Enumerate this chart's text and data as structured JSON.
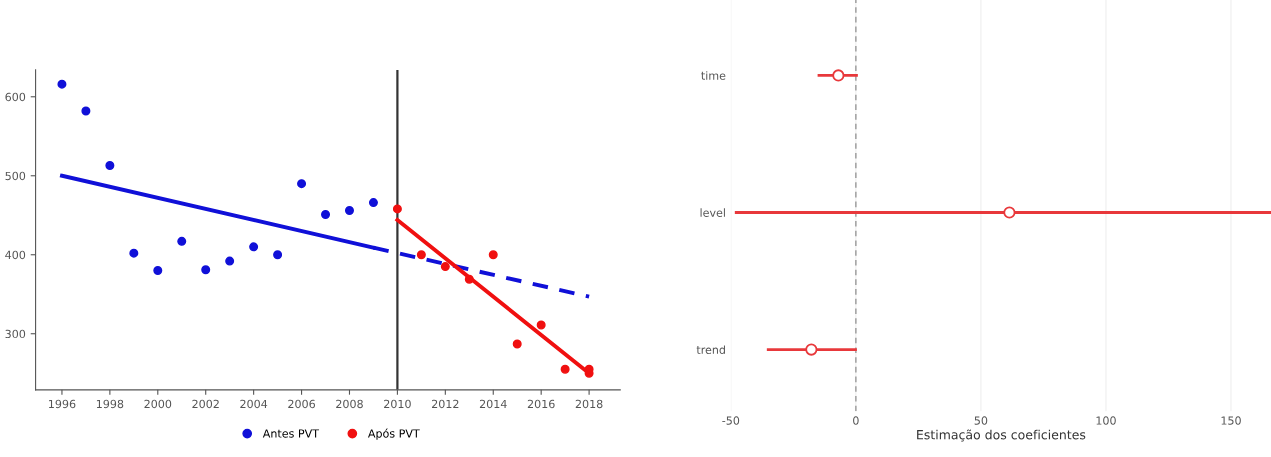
{
  "chart_data": [
    {
      "type": "scatter",
      "xlim": [
        1994.9,
        2019.3
      ],
      "ylim": [
        229,
        634
      ],
      "xticks": [
        1996,
        1998,
        2000,
        2002,
        2004,
        2006,
        2008,
        2010,
        2012,
        2014,
        2016,
        2018
      ],
      "yticks": [
        300,
        400,
        500,
        600
      ],
      "grid": false,
      "legend": "bottom",
      "marker": "circle",
      "series": [
        {
          "name": "Antes PVT",
          "color": "#1010d8",
          "x": [
            1996,
            1997,
            1998,
            1999,
            2000,
            2001,
            2002,
            2003,
            2004,
            2005,
            2006,
            2007,
            2008,
            2009
          ],
          "values": [
            616,
            582,
            513,
            402,
            380,
            417,
            381,
            392,
            410,
            400,
            490,
            451,
            456,
            466
          ]
        },
        {
          "name": "Após PVT",
          "color": "#f01010",
          "x": [
            2010,
            2011,
            2012,
            2013,
            2014,
            2015,
            2016,
            2017,
            2018,
            2018
          ],
          "values": [
            458,
            400,
            385,
            369,
            400,
            287,
            311,
            255,
            250,
            255
          ]
        },
        {
          "type": "line",
          "color": "#1010d8",
          "line_style": "solid",
          "marker": "none",
          "x": [
            1996,
            2009
          ],
          "values": [
            500,
            409
          ]
        },
        {
          "type": "line",
          "color": "#1010d8",
          "line_style": "dashed",
          "marker": "none",
          "x": [
            2009,
            2018
          ],
          "values": [
            409,
            347
          ]
        },
        {
          "type": "line",
          "color": "#f01010",
          "line_style": "solid",
          "marker": "none",
          "x": [
            2010,
            2018
          ],
          "values": [
            444,
            250
          ]
        }
      ],
      "ref_lines": [
        {
          "axis": "x",
          "value": 2010,
          "color": "#333333",
          "line_style": "solid"
        }
      ]
    },
    {
      "type": "scatter",
      "orientation": "horizontal",
      "categories": [
        "time",
        "level",
        "trend"
      ],
      "xlim": [
        -50,
        166
      ],
      "xticks": [
        -50,
        0,
        50,
        100,
        150
      ],
      "xlabel": "Estimação dos coeficientes",
      "grid": "x",
      "marker": "circle",
      "series": [
        {
          "color": "#e8383b",
          "values": [
            -7.0,
            61.4,
            -17.8
          ],
          "errors": [
            [
              -15.3,
              0.8
            ],
            [
              -48.4,
              166
            ],
            [
              -35.6,
              0.4
            ]
          ]
        }
      ],
      "ref_lines": [
        {
          "axis": "x",
          "value": 0,
          "color": "#999999",
          "line_style": "dashed"
        }
      ]
    }
  ]
}
